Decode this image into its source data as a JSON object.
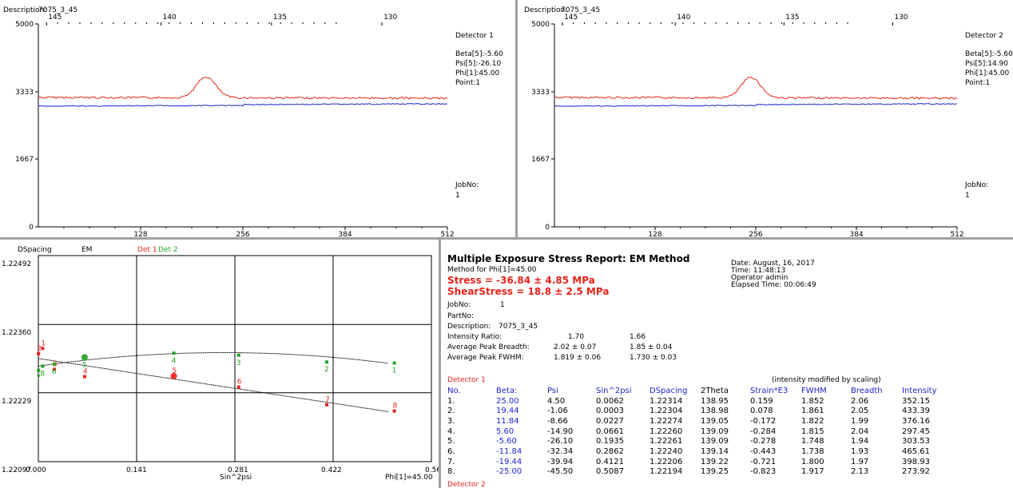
{
  "colors": {
    "det1": "#e8231b",
    "det2": "#23a323",
    "blue": "#1f24cf",
    "red_text": "#e8231b"
  },
  "spectrum_panels": [
    {
      "description_label": "Description:",
      "description_value": "7075_3_45",
      "detector": "Detector  1",
      "beta": "Beta[5]:-5.60",
      "psi": "Psi[5]:-26.10",
      "phi": "Phi[1]:45.00",
      "point": "Point:1",
      "jobno_label": "JobNo:",
      "jobno_value": "1",
      "y_ticks": [
        "5000",
        "3333",
        "1667",
        "0"
      ],
      "x_ticks": [
        "128",
        "256",
        "384",
        "512"
      ],
      "top_ticks": [
        "145",
        "140",
        "135",
        "130"
      ],
      "peak_center": 210
    },
    {
      "description_label": "Description:",
      "description_value": "7075_3_45",
      "detector": "Detector  2",
      "beta": "Beta[5]:-5.60",
      "psi": "Psi[5]:14.90",
      "phi": "Phi[1]:45.00",
      "point": "Point:1",
      "jobno_label": "JobNo:",
      "jobno_value": "1",
      "y_ticks": [
        "5000",
        "3333",
        "1667",
        "0"
      ],
      "x_ticks": [
        "128",
        "256",
        "384",
        "512"
      ],
      "top_ticks": [
        "145",
        "140",
        "135",
        "130"
      ],
      "peak_center": 250
    }
  ],
  "dspacing_chart": {
    "labels": {
      "dspacing": "DSpacing",
      "em": "EM",
      "det1": "Det 1",
      "det2": "Det 2"
    },
    "y_ticks": [
      "1.22492",
      "1.22360",
      "1.22229",
      "1.22097"
    ],
    "x_ticks": [
      "0.000",
      "0.141",
      "0.281",
      "0.422",
      "0.56"
    ],
    "xlabel": "Sin^2psi",
    "phi_label": "Phi[1]=45.00",
    "det1_points": [
      {
        "label": "1",
        "x": 0.0062,
        "y": 1.22314
      },
      {
        "label": "2",
        "x": 0.0003,
        "y": 1.22304
      },
      {
        "label": "3",
        "x": 0.0227,
        "y": 1.22274
      },
      {
        "label": "4",
        "x": 0.0661,
        "y": 1.2226
      },
      {
        "label": "5",
        "x": 0.1935,
        "y": 1.22261
      },
      {
        "label": "6",
        "x": 0.2862,
        "y": 1.2224
      },
      {
        "label": "7",
        "x": 0.4121,
        "y": 1.22206
      },
      {
        "label": "8",
        "x": 0.5087,
        "y": 1.22194
      }
    ],
    "det2_points": [
      {
        "label": "1",
        "x": 0.5087,
        "y": 1.22286
      },
      {
        "label": "2",
        "x": 0.4121,
        "y": 1.22288
      },
      {
        "label": "3",
        "x": 0.2862,
        "y": 1.22301
      },
      {
        "label": "4",
        "x": 0.1935,
        "y": 1.22305
      },
      {
        "label": "5",
        "x": 0.0661,
        "y": 1.22297
      },
      {
        "label": "6",
        "x": 0.0227,
        "y": 1.22284
      },
      {
        "label": "7",
        "x": 0.0003,
        "y": 1.22272
      },
      {
        "label": "8",
        "x": 0.0062,
        "y": 1.2228
      }
    ]
  },
  "report": {
    "title": "Multiple Exposure Stress Report: EM Method",
    "method": "Method for Phi[1]=45.00",
    "stress": "Stress = -36.84 ± 4.85 MPa",
    "shear": "ShearStress = 18.8 ± 2.5 MPa",
    "date": "Date: August, 16, 2017",
    "time": "Time: 11:48:13",
    "operator": "Operator admin",
    "elapsed": "Elapsed Time: 00:06:49",
    "jobno_label": "JobNo:",
    "jobno_value": "1",
    "partno_label": "PartNo:",
    "description_label": "Description:",
    "description_value": "7075_3_45",
    "intensity_label": "Intensity Ratio:",
    "intensity_1": "1.70",
    "intensity_2": "1.66",
    "breadth_label": "Average Peak Breadth:",
    "breadth_1": "2.02 ± 0.07",
    "breadth_2": "1.85 ± 0.04",
    "fwhm_label": "Average Peak FWHM:",
    "fwhm_1": "1.819 ± 0.06",
    "fwhm_2": "1.730 ± 0.03",
    "scaling_note": "(intensity modified by scaling)",
    "detector1_label": "Detector 1",
    "detector2_label": "Detector 2",
    "table_headers": [
      "No.",
      "Beta:",
      "Psi",
      "Sin^2psi",
      "DSpacing",
      "2Theta",
      "Strain*E3",
      "FWHM",
      "Breadth",
      "Intensity"
    ],
    "rows": [
      [
        "1.",
        "25.00",
        "4.50",
        "0.0062",
        "1.22314",
        "138.95",
        "0.159",
        "1.852",
        "2.06",
        "352.15"
      ],
      [
        "2.",
        "19.44",
        "-1.06",
        "0.0003",
        "1.22304",
        "138.98",
        "0.078",
        "1.861",
        "2.05",
        "433.39"
      ],
      [
        "3.",
        "11.84",
        "-8.66",
        "0.0227",
        "1.22274",
        "139.05",
        "-0.172",
        "1.822",
        "1.99",
        "376.16"
      ],
      [
        "4.",
        "5.60",
        "-14.90",
        "0.0661",
        "1.22260",
        "139.09",
        "-0.284",
        "1.815",
        "2.04",
        "297.45"
      ],
      [
        "5.",
        "-5.60",
        "-26.10",
        "0.1935",
        "1.22261",
        "139.09",
        "-0.278",
        "1.748",
        "1.94",
        "303.53"
      ],
      [
        "6.",
        "-11.84",
        "-32.34",
        "0.2862",
        "1.22240",
        "139.14",
        "-0.443",
        "1.738",
        "1.93",
        "465.61"
      ],
      [
        "7.",
        "-19.44",
        "-39.94",
        "0.4121",
        "1.22206",
        "139.22",
        "-0.721",
        "1.800",
        "1.97",
        "398.93"
      ],
      [
        "8.",
        "-25.00",
        "-45.50",
        "0.5087",
        "1.22194",
        "139.25",
        "-0.823",
        "1.917",
        "2.13",
        "273.92"
      ]
    ]
  }
}
